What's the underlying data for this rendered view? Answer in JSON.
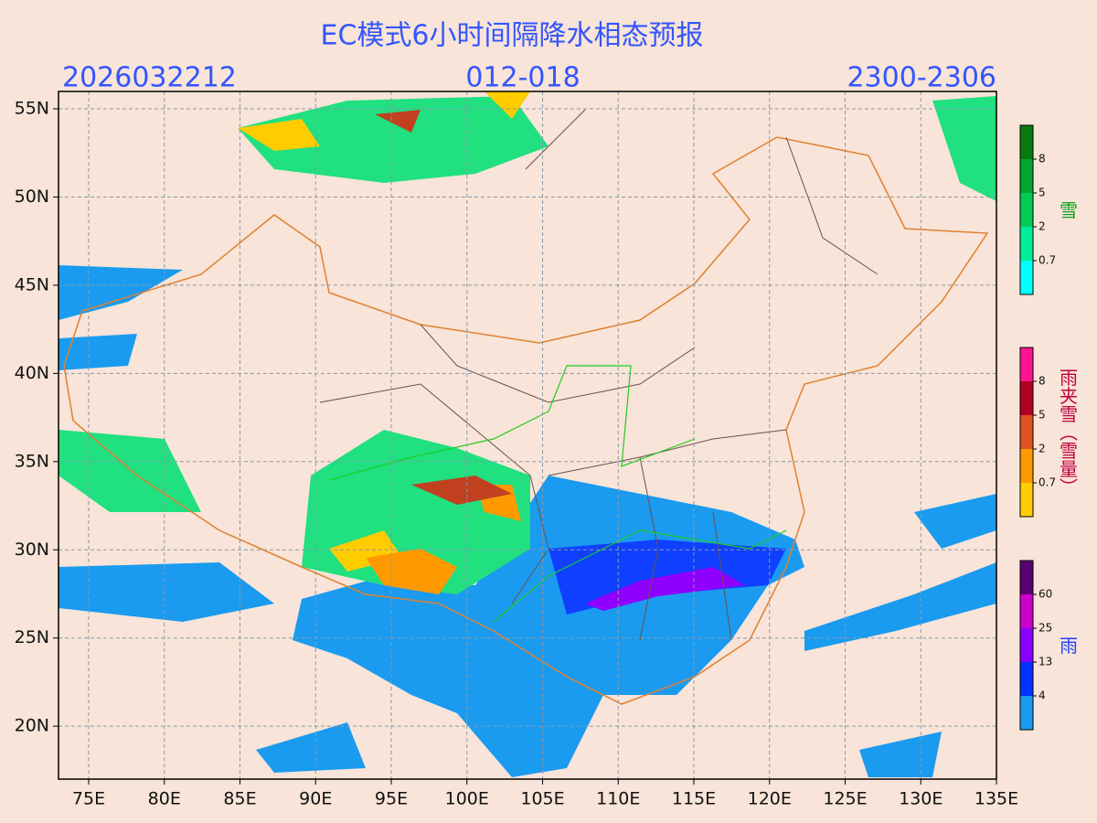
{
  "title": "EC模式6小时间隔降水相态预报",
  "header": {
    "init_time": "2026032212",
    "forecast_hours": "012-018",
    "valid_time": "2300-2306"
  },
  "map": {
    "lat_labels": [
      "55N",
      "50N",
      "45N",
      "40N",
      "35N",
      "30N",
      "25N",
      "20N"
    ],
    "lon_labels": [
      "75E",
      "80E",
      "85E",
      "90E",
      "95E",
      "100E",
      "105E",
      "110E",
      "115E",
      "120E",
      "125E",
      "130E",
      "135E"
    ]
  },
  "legends": [
    {
      "title": "雪",
      "title_color": "#10a020",
      "labels": [
        "8",
        "5",
        "2",
        "0.7"
      ],
      "colors": [
        "#087a10",
        "#00a830",
        "#00cc55",
        "#00ee99",
        "#00ffff"
      ]
    },
    {
      "title": "雨夹雪（雪量）",
      "title_color": "#c00040",
      "labels": [
        "8",
        "5",
        "2",
        "0.7"
      ],
      "colors": [
        "#ff1493",
        "#b00020",
        "#e05020",
        "#ff9900",
        "#ffcc00"
      ]
    },
    {
      "title": "雨",
      "title_color": "#2040ff",
      "labels": [
        "60",
        "25",
        "13",
        "4"
      ],
      "colors": [
        "#5a0070",
        "#cc00cc",
        "#8800ff",
        "#0033ff",
        "#1a9bf0"
      ]
    }
  ]
}
